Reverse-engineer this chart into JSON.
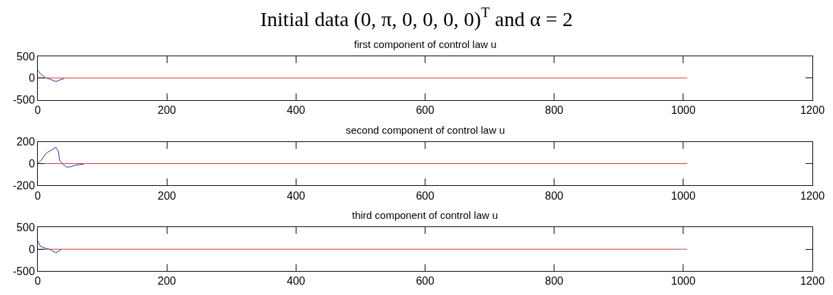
{
  "chart_data": [
    {
      "type": "line",
      "title": "Initial data (0, π, 0, 0, 0, 0)$^{T}$ and α = 2",
      "subtitle": "first component of control law u",
      "xlim": [
        0,
        1200
      ],
      "xticks": [
        0,
        200,
        400,
        600,
        800,
        1000,
        1200
      ],
      "ylim": [
        -500,
        500
      ],
      "yticks": [
        -500,
        0,
        500
      ],
      "line_style": "solid",
      "series": [
        {
          "color": "#2020a0",
          "x": [
            0,
            4,
            9,
            12,
            18,
            23,
            28,
            35,
            41
          ],
          "values": [
            180,
            100,
            40,
            10,
            -20,
            -50,
            -80,
            -40,
            -10
          ]
        },
        {
          "color": "#d03030",
          "x": [
            0,
            1006
          ],
          "values": [
            0,
            0
          ]
        }
      ]
    },
    {
      "type": "line",
      "subtitle": "second component of control law u",
      "xlim": [
        0,
        1200
      ],
      "xticks": [
        0,
        200,
        400,
        600,
        800,
        1000,
        1200
      ],
      "ylim": [
        -200,
        200
      ],
      "yticks": [
        -200,
        0,
        200
      ],
      "line_style": "solid",
      "series": [
        {
          "color": "#2020a0",
          "x": [
            0,
            6,
            11,
            14,
            23,
            28,
            32,
            34,
            39,
            44,
            50,
            58,
            63,
            71
          ],
          "values": [
            0,
            35,
            80,
            100,
            130,
            150,
            110,
            30,
            -5,
            -30,
            -30,
            -15,
            -10,
            -5
          ]
        },
        {
          "color": "#d03030",
          "x": [
            0,
            1006
          ],
          "values": [
            0,
            0
          ]
        }
      ]
    },
    {
      "type": "line",
      "subtitle": "third component of control law u",
      "xlim": [
        0,
        1200
      ],
      "xticks": [
        0,
        200,
        400,
        600,
        800,
        1000,
        1200
      ],
      "ylim": [
        -500,
        500
      ],
      "yticks": [
        -500,
        0,
        500
      ],
      "line_style": "solid",
      "series": [
        {
          "color": "#2020a0",
          "x": [
            0,
            4,
            12,
            18,
            23,
            28,
            33,
            37
          ],
          "values": [
            190,
            70,
            20,
            0,
            -40,
            -80,
            -40,
            0
          ]
        },
        {
          "color": "#d03030",
          "x": [
            0,
            1006
          ],
          "values": [
            0,
            0
          ]
        }
      ]
    }
  ]
}
